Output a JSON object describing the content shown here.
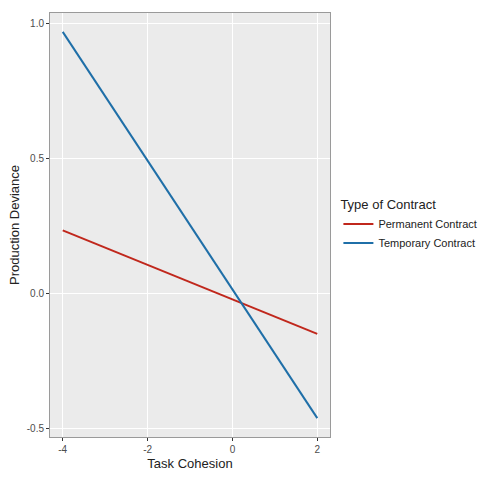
{
  "chart_data": {
    "type": "line",
    "x_label": "Task Cohesion",
    "y_label": "Production Deviance",
    "legend_title": "Type of Contract",
    "x": [
      -4,
      2
    ],
    "series": [
      {
        "name": "Permanent Contract",
        "color": "#c0271c",
        "values": [
          0.235,
          -0.148
        ]
      },
      {
        "name": "Temporary Contract",
        "color": "#1f6fa8",
        "values": [
          0.97,
          -0.46
        ]
      }
    ],
    "xlim": [
      -4.3,
      2.3
    ],
    "xticks": [
      -4,
      -2,
      0,
      2
    ],
    "ylim": [
      -0.53,
      1.04
    ],
    "yticks": [
      -0.5,
      {
        "value": 0,
        "label": "0.0"
      },
      {
        "value": 0.5,
        "label": "0.5"
      },
      {
        "value": 1,
        "label": "1.0"
      }
    ],
    "grid": true,
    "legend": "right"
  }
}
